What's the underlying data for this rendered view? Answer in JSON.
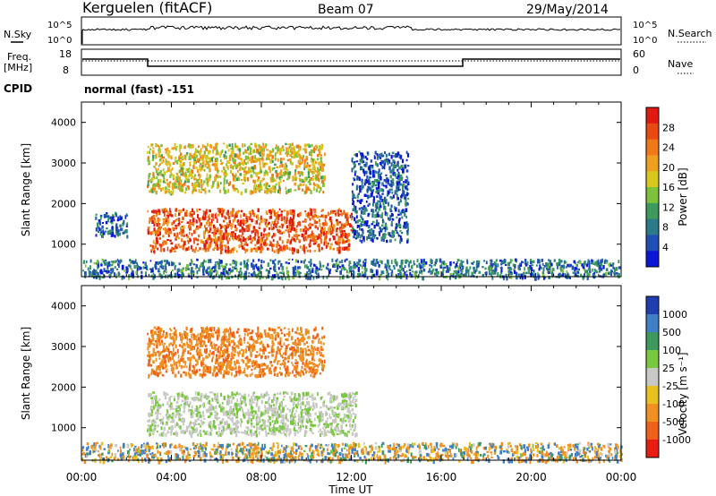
{
  "header": {
    "station": "Kerguelen (fitACF)",
    "beam": "Beam 07",
    "date": "29/May/2014"
  },
  "status_panels": {
    "nsky_label": "N.Sky",
    "nsearch_label": "N.Search",
    "noise_ticks": [
      "10^5",
      "10^0"
    ],
    "freq_label": "Freq.",
    "freq_unit": "[MHz]",
    "freq_ticks": [
      "18",
      "8"
    ],
    "nave_label": "Nave",
    "nave_ticks": [
      "60",
      "0"
    ],
    "cpid_label": "CPID",
    "cpid_value": "normal (fast) -151"
  },
  "chart_data": [
    {
      "type": "heatmap",
      "title": "",
      "xlabel": "Time UT",
      "ylabel": "Slant Range [km]",
      "x_ticks": [
        "00:00",
        "04:00",
        "08:00",
        "12:00",
        "16:00",
        "20:00",
        "00:00"
      ],
      "xlim_hours": [
        0,
        24
      ],
      "y_ticks": [
        1000,
        2000,
        3000,
        4000
      ],
      "ylim_km": [
        200,
        4500
      ],
      "colorbar": {
        "label": "Power [dB]",
        "ticks": [
          "28",
          "24",
          "20",
          "16",
          "12",
          "8",
          "4"
        ],
        "colors": [
          "#0b17d6",
          "#1f4fb4",
          "#2a7a8a",
          "#3c9a5c",
          "#7cc23a",
          "#d8c81c",
          "#f0a020",
          "#f07818",
          "#e84a12",
          "#e01a0e"
        ]
      },
      "features": [
        {
          "name": "main echo band",
          "time_h": [
            2.9,
            12.0
          ],
          "range_km": [
            850,
            1900
          ],
          "power_db": 26
        },
        {
          "name": "upper echoes",
          "time_h": [
            2.9,
            10.8
          ],
          "range_km": [
            2300,
            3500
          ],
          "power_db": 18
        },
        {
          "name": "post-midnight patch",
          "time_h": [
            0.6,
            2.0
          ],
          "range_km": [
            1200,
            1800
          ],
          "power_db": 6
        },
        {
          "name": "near-range clutter",
          "time_h": [
            0.0,
            24.0
          ],
          "range_km": [
            200,
            650
          ],
          "power_db": 8
        },
        {
          "name": "afternoon scatter",
          "time_h": [
            12.0,
            14.5
          ],
          "range_km": [
            1100,
            3300
          ],
          "power_db": 6
        }
      ]
    },
    {
      "type": "heatmap",
      "title": "",
      "xlabel": "Time UT",
      "ylabel": "Slant Range [km]",
      "x_ticks": [
        "00:00",
        "04:00",
        "08:00",
        "12:00",
        "16:00",
        "20:00",
        "00:00"
      ],
      "xlim_hours": [
        0,
        24
      ],
      "y_ticks": [
        1000,
        2000,
        3000,
        4000
      ],
      "ylim_km": [
        200,
        4500
      ],
      "colorbar": {
        "label": "Velocity [m s⁻¹]",
        "ticks": [
          "1000",
          "500",
          "100",
          "25",
          "-25",
          "-100",
          "-500",
          "-1000"
        ],
        "colors": [
          "#1f3fb0",
          "#3f7fc8",
          "#3c9a5c",
          "#78c840",
          "#c8c8c4",
          "#e8c020",
          "#f09020",
          "#f06018",
          "#e81c10"
        ]
      },
      "features": [
        {
          "name": "ground scatter band",
          "time_h": [
            2.9,
            12.2
          ],
          "range_km": [
            850,
            1900
          ],
          "velocity_ms": 0
        },
        {
          "name": "upper echoes",
          "time_h": [
            2.9,
            10.8
          ],
          "range_km": [
            2300,
            3500
          ],
          "velocity_ms": -400
        },
        {
          "name": "near-range clutter",
          "time_h": [
            0.0,
            24.0
          ],
          "range_km": [
            200,
            650
          ],
          "velocity_ms": -50
        }
      ]
    }
  ]
}
